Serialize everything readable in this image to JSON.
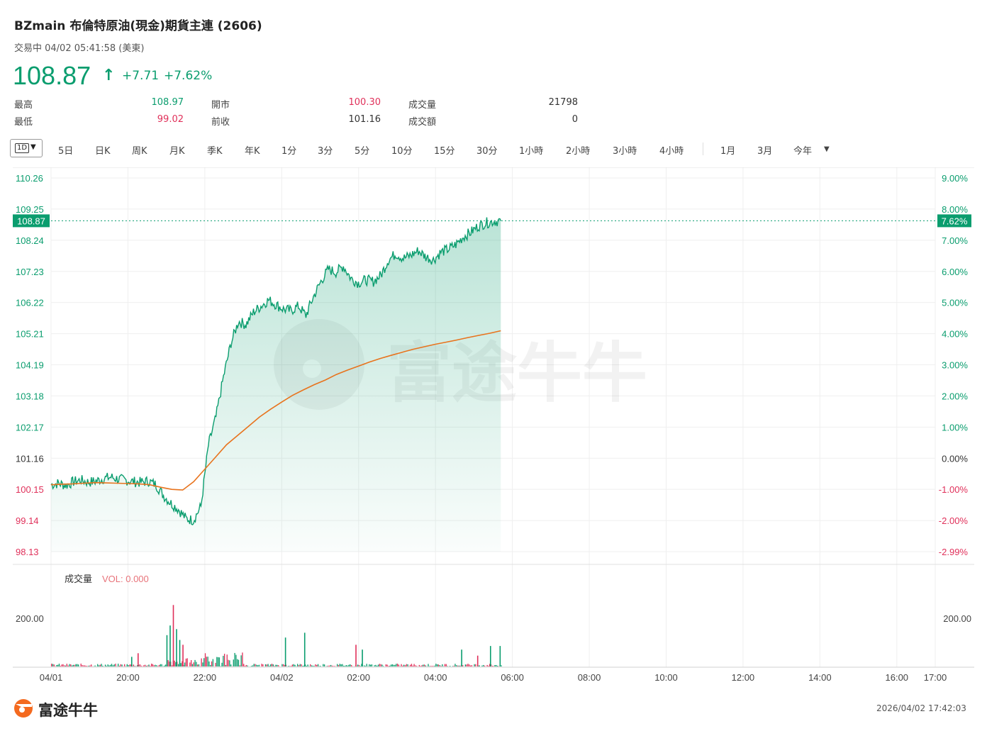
{
  "header": {
    "title": "BZmain  布倫特原油(現金)期貨主連 (2606)",
    "status": "交易中 04/02 05:41:58 (美東)",
    "price": "108.87",
    "change": "+7.71",
    "change_pct": "+7.62%"
  },
  "stats": {
    "high_label": "最高",
    "high": "108.97",
    "low_label": "最低",
    "low": "99.02",
    "open_label": "開市",
    "open": "100.30",
    "prev_label": "前收",
    "prev": "101.16",
    "vol_label": "成交量",
    "vol": "21798",
    "amt_label": "成交額",
    "amt": "0"
  },
  "tabs": {
    "selected": "1D",
    "items": [
      "5日",
      "日K",
      "周K",
      "月K",
      "季K",
      "年K",
      "1分",
      "3分",
      "5分",
      "10分",
      "15分",
      "30分",
      "1小時",
      "2小時",
      "3小時",
      "4小時",
      "1月",
      "3月",
      "今年"
    ]
  },
  "chart_data": {
    "type": "line",
    "y_ticks_left": [
      "110.26",
      "109.25",
      "108.24",
      "107.23",
      "106.22",
      "105.21",
      "104.19",
      "103.18",
      "102.17",
      "101.16",
      "100.15",
      "99.14",
      "98.13"
    ],
    "y_ticks_right": [
      "9.00%",
      "8.00%",
      "7.00%",
      "6.00%",
      "5.00%",
      "4.00%",
      "3.00%",
      "2.00%",
      "1.00%",
      "0.00%",
      "-1.00%",
      "-2.00%",
      "-2.99%"
    ],
    "ylim": [
      98.13,
      110.26
    ],
    "x_ticks": [
      "04/01",
      "20:00",
      "22:00",
      "04/02",
      "02:00",
      "04:00",
      "06:00",
      "08:00",
      "10:00",
      "12:00",
      "14:00",
      "16:00",
      "17:00"
    ],
    "current_price_label": "108.87",
    "current_pct_label": "7.62%",
    "volume_label": "成交量",
    "volume_indicator": "VOL: 0.000",
    "volume_tick": "200.00",
    "colors": {
      "up": "#0a9d6e",
      "down": "#e0305a",
      "avg": "#e8731d"
    },
    "series": [
      {
        "values": [
          100.3,
          100.35,
          100.28,
          100.4,
          100.45,
          100.38,
          100.42,
          100.5,
          100.55,
          100.48,
          100.45,
          100.4,
          100.38,
          100.42,
          100.3,
          99.95,
          99.7,
          99.5,
          99.2,
          99.15,
          99.6,
          101.6,
          102.5,
          103.8,
          104.9,
          105.6,
          105.5,
          105.9,
          106.1,
          106.3,
          106.15,
          106.0,
          105.95,
          106.1,
          105.8,
          106.4,
          106.9,
          107.3,
          107.2,
          107.4,
          107.0,
          106.85,
          106.95,
          106.9,
          107.1,
          107.6,
          107.8,
          107.65,
          107.75,
          107.9,
          107.7,
          107.6,
          107.85,
          107.95,
          108.1,
          108.35,
          108.5,
          108.7,
          108.8,
          108.85,
          108.87
        ]
      },
      {
        "values": [
          100.3,
          100.32,
          100.33,
          100.35,
          100.37,
          100.36,
          100.35,
          100.34,
          100.33,
          100.3,
          100.22,
          100.15,
          100.13,
          100.4,
          100.8,
          101.2,
          101.6,
          101.9,
          102.2,
          102.5,
          102.75,
          102.98,
          103.2,
          103.38,
          103.55,
          103.7,
          103.88,
          104.02,
          104.15,
          104.28,
          104.4,
          104.5,
          104.6,
          104.7,
          104.78,
          104.86,
          104.93,
          105.0,
          105.08,
          105.15,
          105.22,
          105.3
        ]
      }
    ],
    "volume_spikes": [
      {
        "time": "20:05",
        "value": 40
      },
      {
        "time": "20:15",
        "value": 55
      },
      {
        "time": "21:00",
        "value": 130
      },
      {
        "time": "21:05",
        "value": 170
      },
      {
        "time": "21:10",
        "value": 255
      },
      {
        "time": "21:15",
        "value": 155
      },
      {
        "time": "21:20",
        "value": 110
      },
      {
        "time": "21:25",
        "value": 90
      },
      {
        "time": "00:05",
        "value": 120
      },
      {
        "time": "00:35",
        "value": 140
      },
      {
        "time": "01:55",
        "value": 90
      },
      {
        "time": "02:05",
        "value": 70
      },
      {
        "time": "04:40",
        "value": 70
      },
      {
        "time": "05:05",
        "value": 45
      },
      {
        "time": "05:25",
        "value": 85
      },
      {
        "time": "05:40",
        "value": 85
      }
    ]
  }
}
